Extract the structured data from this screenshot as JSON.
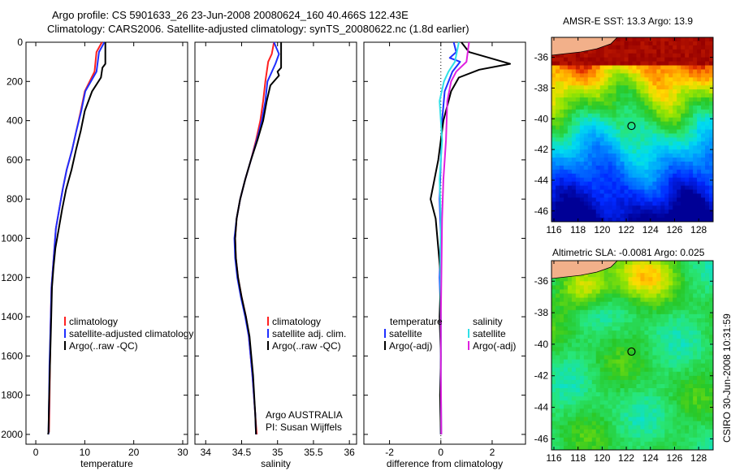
{
  "header": {
    "line1": "Argo profile: CS 5901633_26 23-Jun-2008 20080624_160 40.466S 122.43E",
    "line2": "Climatology: CARS2006. Satellite-adjusted climatology: synTS_20080622.nc (1.8d earlier)"
  },
  "side_label": "CSIRO 30-Jun-2008 10:31:59",
  "colors": {
    "climatology": "#ff2020",
    "satellite": "#1f2fff",
    "argo": "#000000",
    "sat_salinity": "#30e0e8",
    "argo_salinity": "#e020e0",
    "axes": "#000000"
  },
  "chart_data": [
    {
      "type": "line",
      "xlabel": "temperature",
      "xlim": [
        -2,
        31
      ],
      "ylim": [
        2050,
        0
      ],
      "xticks": [
        0,
        10,
        20,
        30
      ],
      "yticks": [
        0,
        200,
        400,
        600,
        800,
        1000,
        1200,
        1400,
        1600,
        1800,
        2000
      ],
      "legend": [
        "climatology",
        "satellite-adjusted climatology",
        "Argo(..raw -QC)"
      ],
      "series": [
        {
          "name": "climatology",
          "color": "#ff2020",
          "x": [
            13.5,
            12.4,
            12.0,
            10.0,
            9.2,
            8.3,
            7.4,
            6.3,
            5.5,
            4.8,
            4.1,
            3.8,
            3.5,
            3.2,
            3.0,
            2.9,
            2.8,
            2.7
          ],
          "y": [
            0,
            50,
            150,
            250,
            350,
            450,
            550,
            650,
            750,
            850,
            950,
            1050,
            1150,
            1250,
            1450,
            1650,
            1850,
            1990
          ]
        },
        {
          "name": "satellite-adjusted climatology",
          "color": "#1f2fff",
          "x": [
            14.0,
            12.9,
            12.4,
            10.1,
            9.3,
            8.3,
            7.4,
            6.3,
            5.5,
            4.8,
            4.1,
            3.8,
            3.5,
            3.2,
            3.0,
            2.8,
            2.7,
            2.6
          ],
          "y": [
            0,
            50,
            150,
            250,
            350,
            450,
            550,
            650,
            750,
            850,
            950,
            1050,
            1150,
            1250,
            1450,
            1650,
            1850,
            2000
          ]
        },
        {
          "name": "Argo(..raw -QC)",
          "color": "#000000",
          "x": [
            14.2,
            14.2,
            13.6,
            13.3,
            11.5,
            10.0,
            9.2,
            8.2,
            7.3,
            6.2,
            5.4,
            4.7,
            4.0,
            3.6,
            3.3,
            3.1,
            2.9,
            2.7,
            2.6,
            2.5
          ],
          "y": [
            0,
            110,
            130,
            180,
            250,
            350,
            450,
            550,
            650,
            750,
            850,
            950,
            1050,
            1150,
            1250,
            1450,
            1650,
            1850,
            1990,
            2000
          ]
        }
      ]
    },
    {
      "type": "line",
      "xlabel": "salinity",
      "xlim": [
        33.85,
        36.1
      ],
      "ylim": [
        2050,
        0
      ],
      "xticks": [
        34,
        34.5,
        35,
        35.5,
        36
      ],
      "legend": [
        "climatology",
        "satellite adj. clim.",
        "Argo(..raw -QC)"
      ],
      "annotation": [
        "Argo AUSTRALIA",
        "PI: Susan Wijffels"
      ],
      "series": [
        {
          "name": "climatology",
          "color": "#ff2020",
          "x": [
            34.95,
            34.92,
            34.87,
            34.83,
            34.8,
            34.76,
            34.7,
            34.63,
            34.55,
            34.48,
            34.43,
            34.41,
            34.42,
            34.45,
            34.5,
            34.56,
            34.6,
            34.65,
            34.69,
            34.71
          ],
          "y": [
            0,
            60,
            100,
            200,
            300,
            400,
            500,
            600,
            700,
            800,
            900,
            1000,
            1100,
            1200,
            1300,
            1400,
            1500,
            1700,
            1900,
            2000
          ]
        },
        {
          "name": "satellite adj. clim.",
          "color": "#1f2fff",
          "x": [
            34.95,
            35.02,
            34.97,
            34.86,
            34.83,
            34.78,
            34.71,
            34.63,
            34.55,
            34.48,
            34.43,
            34.4,
            34.41,
            34.44,
            34.49,
            34.55,
            34.6,
            34.65,
            34.69,
            34.7
          ],
          "y": [
            0,
            60,
            110,
            200,
            300,
            400,
            500,
            600,
            700,
            800,
            900,
            1000,
            1100,
            1200,
            1300,
            1400,
            1500,
            1700,
            1900,
            2000
          ]
        },
        {
          "name": "Argo(..raw -QC)",
          "color": "#000000",
          "x": [
            35.05,
            35.05,
            35.0,
            35.02,
            34.9,
            34.85,
            34.8,
            34.72,
            34.63,
            34.55,
            34.48,
            34.43,
            34.41,
            34.42,
            34.45,
            34.5,
            34.56,
            34.61,
            34.66,
            34.69,
            34.7
          ],
          "y": [
            0,
            130,
            150,
            170,
            220,
            300,
            400,
            500,
            600,
            700,
            800,
            900,
            1000,
            1100,
            1200,
            1300,
            1400,
            1500,
            1700,
            1900,
            2000
          ]
        }
      ]
    },
    {
      "type": "line",
      "xlabel": "difference from climatology",
      "xlim": [
        -3,
        3.3
      ],
      "ylim": [
        2050,
        0
      ],
      "xticks": [
        -2,
        0,
        2
      ],
      "legend": {
        "temperature": [
          "temperature",
          "satellite",
          "Argo(-adj)"
        ],
        "salinity": [
          "salinity",
          "satellite",
          "Argo(-adj)"
        ]
      },
      "series": [
        {
          "name": "satellite",
          "color": "#1f2fff",
          "x": [
            0.5,
            0.6,
            0.35,
            0.75,
            0.45,
            0.15,
            0.05,
            0.0,
            -0.05,
            0.0,
            -0.05,
            0.0,
            0.0,
            -0.02,
            0.0
          ],
          "y": [
            0,
            50,
            80,
            100,
            150,
            250,
            400,
            600,
            800,
            1000,
            1200,
            1400,
            1600,
            1800,
            2000
          ]
        },
        {
          "name": "Argo(-adj)",
          "color": "#000000",
          "x": [
            0.8,
            1.1,
            2.7,
            1.5,
            0.7,
            0.4,
            0.1,
            -0.1,
            -0.4,
            -0.2,
            -0.1,
            0.0,
            -0.05,
            0.0,
            -0.03,
            0.0
          ],
          "y": [
            0,
            50,
            110,
            140,
            180,
            250,
            400,
            600,
            800,
            900,
            1050,
            1200,
            1400,
            1600,
            1800,
            2000
          ]
        },
        {
          "name": "satellite",
          "color": "#30e0e8",
          "x": [
            0.7,
            0.55,
            0.3,
            0.12,
            -0.05,
            0.05,
            -0.05,
            0.0,
            -0.02,
            0.0,
            0.0,
            0.02
          ],
          "y": [
            0,
            100,
            150,
            200,
            300,
            500,
            700,
            900,
            1100,
            1400,
            1700,
            2000
          ]
        },
        {
          "name": "Argo(-adj)",
          "color": "#e020e0",
          "x": [
            1.1,
            1.0,
            0.6,
            0.4,
            0.25,
            0.2,
            0.1,
            0.05,
            0.03,
            0.0,
            0.0,
            0.02
          ],
          "y": [
            0,
            100,
            150,
            200,
            300,
            500,
            700,
            900,
            1100,
            1400,
            1700,
            2000
          ]
        }
      ]
    },
    {
      "type": "heatmap",
      "title": "AMSR-E SST: 13.3  Argo: 13.9",
      "xticks": [
        116,
        118,
        120,
        122,
        124,
        126,
        128
      ],
      "yticks": [
        -36,
        -38,
        -40,
        -42,
        -44,
        -46
      ],
      "xlim": [
        115.8,
        129.2
      ],
      "ylim": [
        -46.7,
        -34.7
      ],
      "marker": {
        "lon": 122.43,
        "lat": -40.466
      }
    },
    {
      "type": "heatmap",
      "title": "Altimetric SLA: -0.0081  Argo: 0.025",
      "xticks": [
        116,
        118,
        120,
        122,
        124,
        126,
        128
      ],
      "yticks": [
        -36,
        -38,
        -40,
        -42,
        -44,
        -46
      ],
      "xlim": [
        115.8,
        129.2
      ],
      "ylim": [
        -46.7,
        -34.7
      ],
      "marker": {
        "lon": 122.43,
        "lat": -40.466
      }
    }
  ]
}
